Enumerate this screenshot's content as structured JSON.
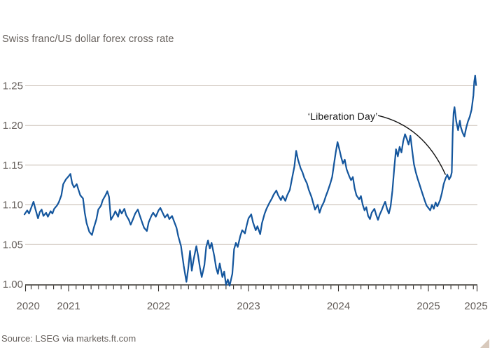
{
  "footer": {
    "source": "Source: LSEG via markets.ft.com"
  },
  "colors": {
    "background": "#ffffff",
    "line": "#14569d",
    "grid": "#ccc1b7",
    "axis": "#33302c",
    "tick_label": "#66605c",
    "title": "#66605c",
    "annotation": "#111111",
    "corner_triangle": "#d8c9bc"
  },
  "chart_data": {
    "type": "line",
    "title": "Swiss franc/US dollar forex cross rate",
    "xlabel": "",
    "ylabel": "",
    "grid": "horizontal-only",
    "legend": "none",
    "ylim": [
      1.0,
      1.27
    ],
    "yticks": [
      1.0,
      1.05,
      1.1,
      1.15,
      1.2,
      1.25
    ],
    "ytick_labels": [
      "1.00",
      "1.05",
      "1.10",
      "1.15",
      "1.20",
      "1.25"
    ],
    "xlim_years": [
      2020.52,
      2025.55
    ],
    "xticks": [
      {
        "label": "2020",
        "t": 2020.55
      },
      {
        "label": "2021",
        "t": 2021
      },
      {
        "label": "2022",
        "t": 2022
      },
      {
        "label": "2023",
        "t": 2023
      },
      {
        "label": "2024",
        "t": 2024
      },
      {
        "label": "2025",
        "t": 2025
      },
      {
        "label": "2025",
        "t": 2025.53
      }
    ],
    "annotation": {
      "text": "‘Liberation Day’",
      "label": {
        "t": 2023.66,
        "v": 1.2187
      },
      "curve": {
        "start": {
          "t": 2024.44,
          "v": 1.2125
        },
        "control": {
          "t": 2024.95,
          "v": 1.199
        },
        "end": {
          "t": 2025.19,
          "v": 1.138
        }
      }
    },
    "series": [
      {
        "name": "Swiss franc/US dollar cross rate",
        "points": [
          [
            2020.51,
            1.088
          ],
          [
            2020.54,
            1.093
          ],
          [
            2020.56,
            1.089
          ],
          [
            2020.59,
            1.098
          ],
          [
            2020.61,
            1.104
          ],
          [
            2020.63,
            1.095
          ],
          [
            2020.66,
            1.083
          ],
          [
            2020.68,
            1.091
          ],
          [
            2020.7,
            1.094
          ],
          [
            2020.72,
            1.086
          ],
          [
            2020.75,
            1.09
          ],
          [
            2020.77,
            1.085
          ],
          [
            2020.8,
            1.092
          ],
          [
            2020.82,
            1.089
          ],
          [
            2020.84,
            1.095
          ],
          [
            2020.87,
            1.099
          ],
          [
            2020.89,
            1.103
          ],
          [
            2020.92,
            1.112
          ],
          [
            2020.94,
            1.126
          ],
          [
            2020.97,
            1.132
          ],
          [
            2021.0,
            1.136
          ],
          [
            2021.02,
            1.139
          ],
          [
            2021.04,
            1.127
          ],
          [
            2021.06,
            1.122
          ],
          [
            2021.09,
            1.126
          ],
          [
            2021.11,
            1.119
          ],
          [
            2021.13,
            1.112
          ],
          [
            2021.16,
            1.108
          ],
          [
            2021.18,
            1.09
          ],
          [
            2021.2,
            1.077
          ],
          [
            2021.23,
            1.066
          ],
          [
            2021.26,
            1.062
          ],
          [
            2021.28,
            1.071
          ],
          [
            2021.31,
            1.082
          ],
          [
            2021.33,
            1.094
          ],
          [
            2021.36,
            1.099
          ],
          [
            2021.38,
            1.106
          ],
          [
            2021.41,
            1.112
          ],
          [
            2021.43,
            1.117
          ],
          [
            2021.45,
            1.11
          ],
          [
            2021.47,
            1.081
          ],
          [
            2021.5,
            1.087
          ],
          [
            2021.52,
            1.092
          ],
          [
            2021.55,
            1.085
          ],
          [
            2021.57,
            1.094
          ],
          [
            2021.59,
            1.089
          ],
          [
            2021.62,
            1.095
          ],
          [
            2021.64,
            1.087
          ],
          [
            2021.67,
            1.081
          ],
          [
            2021.69,
            1.075
          ],
          [
            2021.72,
            1.083
          ],
          [
            2021.74,
            1.089
          ],
          [
            2021.77,
            1.094
          ],
          [
            2021.79,
            1.087
          ],
          [
            2021.82,
            1.077
          ],
          [
            2021.84,
            1.071
          ],
          [
            2021.87,
            1.067
          ],
          [
            2021.89,
            1.078
          ],
          [
            2021.92,
            1.086
          ],
          [
            2021.94,
            1.09
          ],
          [
            2021.97,
            1.085
          ],
          [
            2022.0,
            1.093
          ],
          [
            2022.02,
            1.096
          ],
          [
            2022.05,
            1.089
          ],
          [
            2022.07,
            1.084
          ],
          [
            2022.1,
            1.088
          ],
          [
            2022.12,
            1.082
          ],
          [
            2022.15,
            1.086
          ],
          [
            2022.17,
            1.08
          ],
          [
            2022.2,
            1.071
          ],
          [
            2022.22,
            1.06
          ],
          [
            2022.25,
            1.048
          ],
          [
            2022.28,
            1.023
          ],
          [
            2022.31,
            1.003
          ],
          [
            2022.33,
            1.02
          ],
          [
            2022.35,
            1.042
          ],
          [
            2022.37,
            1.017
          ],
          [
            2022.39,
            1.031
          ],
          [
            2022.42,
            1.048
          ],
          [
            2022.44,
            1.036
          ],
          [
            2022.46,
            1.021
          ],
          [
            2022.48,
            1.009
          ],
          [
            2022.51,
            1.024
          ],
          [
            2022.53,
            1.047
          ],
          [
            2022.55,
            1.055
          ],
          [
            2022.57,
            1.045
          ],
          [
            2022.59,
            1.052
          ],
          [
            2022.62,
            1.035
          ],
          [
            2022.64,
            1.021
          ],
          [
            2022.66,
            1.013
          ],
          [
            2022.68,
            1.026
          ],
          [
            2022.71,
            1.009
          ],
          [
            2022.73,
            1.016
          ],
          [
            2022.75,
            0.999
          ],
          [
            2022.77,
            1.006
          ],
          [
            2022.79,
            0.998
          ],
          [
            2022.82,
            1.013
          ],
          [
            2022.84,
            1.044
          ],
          [
            2022.86,
            1.052
          ],
          [
            2022.88,
            1.047
          ],
          [
            2022.91,
            1.061
          ],
          [
            2022.93,
            1.068
          ],
          [
            2022.96,
            1.064
          ],
          [
            2022.98,
            1.074
          ],
          [
            2023.0,
            1.083
          ],
          [
            2023.03,
            1.088
          ],
          [
            2023.05,
            1.078
          ],
          [
            2023.08,
            1.068
          ],
          [
            2023.1,
            1.073
          ],
          [
            2023.13,
            1.063
          ],
          [
            2023.15,
            1.077
          ],
          [
            2023.18,
            1.089
          ],
          [
            2023.2,
            1.095
          ],
          [
            2023.23,
            1.102
          ],
          [
            2023.26,
            1.108
          ],
          [
            2023.28,
            1.113
          ],
          [
            2023.31,
            1.118
          ],
          [
            2023.33,
            1.112
          ],
          [
            2023.36,
            1.106
          ],
          [
            2023.38,
            1.111
          ],
          [
            2023.41,
            1.105
          ],
          [
            2023.43,
            1.112
          ],
          [
            2023.46,
            1.119
          ],
          [
            2023.48,
            1.131
          ],
          [
            2023.51,
            1.148
          ],
          [
            2023.53,
            1.168
          ],
          [
            2023.55,
            1.157
          ],
          [
            2023.58,
            1.146
          ],
          [
            2023.6,
            1.141
          ],
          [
            2023.62,
            1.134
          ],
          [
            2023.65,
            1.127
          ],
          [
            2023.67,
            1.119
          ],
          [
            2023.7,
            1.11
          ],
          [
            2023.72,
            1.102
          ],
          [
            2023.74,
            1.094
          ],
          [
            2023.77,
            1.1
          ],
          [
            2023.79,
            1.09
          ],
          [
            2023.81,
            1.097
          ],
          [
            2023.84,
            1.104
          ],
          [
            2023.86,
            1.111
          ],
          [
            2023.88,
            1.117
          ],
          [
            2023.91,
            1.127
          ],
          [
            2023.93,
            1.135
          ],
          [
            2023.95,
            1.151
          ],
          [
            2023.97,
            1.166
          ],
          [
            2023.99,
            1.179
          ],
          [
            2024.01,
            1.17
          ],
          [
            2024.03,
            1.16
          ],
          [
            2024.05,
            1.152
          ],
          [
            2024.07,
            1.157
          ],
          [
            2024.09,
            1.145
          ],
          [
            2024.12,
            1.136
          ],
          [
            2024.14,
            1.131
          ],
          [
            2024.16,
            1.135
          ],
          [
            2024.18,
            1.121
          ],
          [
            2024.2,
            1.112
          ],
          [
            2024.23,
            1.107
          ],
          [
            2024.25,
            1.111
          ],
          [
            2024.27,
            1.1
          ],
          [
            2024.29,
            1.093
          ],
          [
            2024.31,
            1.097
          ],
          [
            2024.33,
            1.086
          ],
          [
            2024.35,
            1.082
          ],
          [
            2024.37,
            1.09
          ],
          [
            2024.4,
            1.095
          ],
          [
            2024.42,
            1.087
          ],
          [
            2024.44,
            1.081
          ],
          [
            2024.46,
            1.088
          ],
          [
            2024.48,
            1.093
          ],
          [
            2024.5,
            1.099
          ],
          [
            2024.52,
            1.104
          ],
          [
            2024.54,
            1.095
          ],
          [
            2024.56,
            1.089
          ],
          [
            2024.58,
            1.098
          ],
          [
            2024.6,
            1.118
          ],
          [
            2024.62,
            1.146
          ],
          [
            2024.64,
            1.17
          ],
          [
            2024.66,
            1.161
          ],
          [
            2024.68,
            1.173
          ],
          [
            2024.7,
            1.166
          ],
          [
            2024.72,
            1.18
          ],
          [
            2024.74,
            1.189
          ],
          [
            2024.76,
            1.183
          ],
          [
            2024.78,
            1.176
          ],
          [
            2024.8,
            1.187
          ],
          [
            2024.82,
            1.168
          ],
          [
            2024.84,
            1.151
          ],
          [
            2024.86,
            1.141
          ],
          [
            2024.88,
            1.133
          ],
          [
            2024.9,
            1.126
          ],
          [
            2024.92,
            1.119
          ],
          [
            2024.94,
            1.112
          ],
          [
            2024.96,
            1.105
          ],
          [
            2024.98,
            1.099
          ],
          [
            2025.0,
            1.096
          ],
          [
            2025.02,
            1.093
          ],
          [
            2025.04,
            1.1
          ],
          [
            2025.06,
            1.095
          ],
          [
            2025.08,
            1.103
          ],
          [
            2025.1,
            1.098
          ],
          [
            2025.13,
            1.106
          ],
          [
            2025.15,
            1.115
          ],
          [
            2025.17,
            1.126
          ],
          [
            2025.19,
            1.133
          ],
          [
            2025.21,
            1.138
          ],
          [
            2025.23,
            1.132
          ],
          [
            2025.25,
            1.136
          ],
          [
            2025.26,
            1.141
          ],
          [
            2025.27,
            1.19
          ],
          [
            2025.28,
            1.216
          ],
          [
            2025.29,
            1.223
          ],
          [
            2025.31,
            1.205
          ],
          [
            2025.33,
            1.194
          ],
          [
            2025.35,
            1.206
          ],
          [
            2025.36,
            1.198
          ],
          [
            2025.38,
            1.191
          ],
          [
            2025.4,
            1.186
          ],
          [
            2025.42,
            1.197
          ],
          [
            2025.44,
            1.205
          ],
          [
            2025.46,
            1.211
          ],
          [
            2025.48,
            1.22
          ],
          [
            2025.5,
            1.238
          ],
          [
            2025.51,
            1.255
          ],
          [
            2025.52,
            1.263
          ],
          [
            2025.53,
            1.251
          ]
        ]
      }
    ]
  }
}
